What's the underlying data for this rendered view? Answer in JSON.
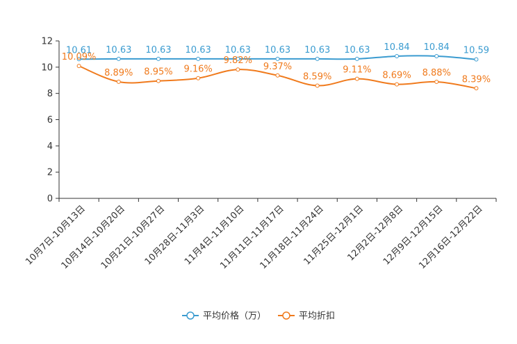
{
  "chart_data": {
    "type": "line",
    "categories": [
      "10月7日-10月13日",
      "10月14日-10月20日",
      "10月21日-10月27日",
      "10月28日-11月3日",
      "11月4日-11月10日",
      "11月11日-11月17日",
      "11月18日-11月24日",
      "11月25日-12月1日",
      "12月2日-12月8日",
      "12月9日-12月15日",
      "12月16日-12月22日"
    ],
    "series": [
      {
        "name": "平均价格（万）",
        "color": "#3a9bd0",
        "values": [
          10.61,
          10.63,
          10.63,
          10.63,
          10.63,
          10.63,
          10.63,
          10.63,
          10.84,
          10.84,
          10.59
        ],
        "labels": [
          "10.61",
          "10.63",
          "10.63",
          "10.63",
          "10.63",
          "10.63",
          "10.63",
          "10.63",
          "10.84",
          "10.84",
          "10.59"
        ]
      },
      {
        "name": "平均折扣",
        "color": "#f07a1c",
        "values": [
          10.09,
          8.89,
          8.95,
          9.16,
          9.82,
          9.37,
          8.59,
          9.11,
          8.69,
          8.88,
          8.39
        ],
        "labels": [
          "10.09%",
          "8.89%",
          "8.95%",
          "9.16%",
          "9.82%",
          "9.37%",
          "8.59%",
          "9.11%",
          "8.69%",
          "8.88%",
          "8.39%"
        ]
      }
    ],
    "yticks": [
      0,
      2,
      4,
      6,
      8,
      10,
      12
    ],
    "ylim": [
      0,
      12
    ],
    "legend_position": "bottom-center"
  }
}
